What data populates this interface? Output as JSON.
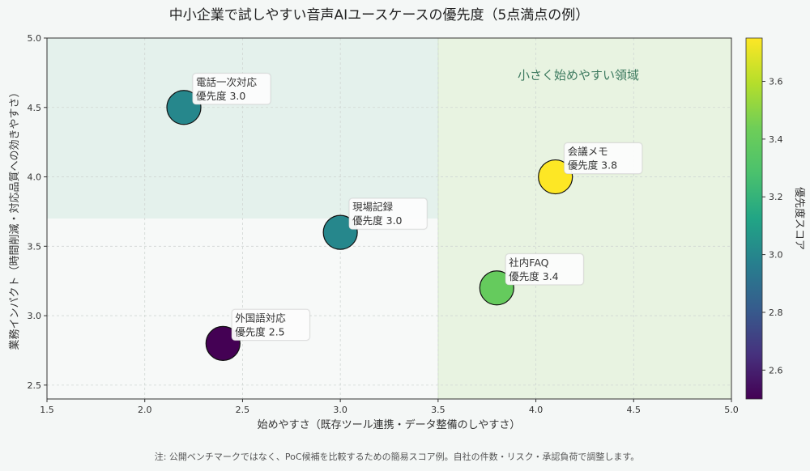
{
  "chart_data": {
    "type": "scatter",
    "title": "中小企業で試しやすい音声AIユースケースの優先度（5点満点の例）",
    "xlabel": "始めやすさ（既存ツール連携・データ整備のしやすさ）",
    "ylabel": "業務インパクト（時間削減・対応品質への効きやすさ）",
    "xlim": [
      1.5,
      5.0
    ],
    "ylim": [
      2.4,
      5.0
    ],
    "xticks": [
      "1.5",
      "2.0",
      "2.5",
      "3.0",
      "3.5",
      "4.0",
      "4.5",
      "5.0"
    ],
    "yticks": [
      "2.5",
      "3.0",
      "3.5",
      "4.0",
      "4.5",
      "5.0"
    ],
    "grid": true,
    "colorbar": {
      "label": "優先度スコア",
      "colormap": "viridis",
      "range": [
        2.5,
        3.75
      ],
      "ticks": [
        "2.6",
        "2.8",
        "3.0",
        "3.2",
        "3.4",
        "3.6"
      ]
    },
    "region_label": "小さく始めやすい領域",
    "points": [
      {
        "name": "電話一次対応",
        "priority_label": "優先度 3.0",
        "x": 2.2,
        "y": 4.5,
        "priority": 3.0
      },
      {
        "name": "会議メモ",
        "priority_label": "優先度 3.8",
        "x": 4.1,
        "y": 4.0,
        "priority": 3.8
      },
      {
        "name": "現場記録",
        "priority_label": "優先度 3.0",
        "x": 3.0,
        "y": 3.6,
        "priority": 3.0
      },
      {
        "name": "社内FAQ",
        "priority_label": "優先度 3.4",
        "x": 3.8,
        "y": 3.2,
        "priority": 3.4
      },
      {
        "name": "外国語対応",
        "priority_label": "優先度 2.5",
        "x": 2.4,
        "y": 2.8,
        "priority": 2.5
      }
    ],
    "footnote": "注: 公開ベンチマークではなく、PoC候補を比較するための簡易スコア例。自社の件数・リスク・承認負荷で調整します。"
  }
}
